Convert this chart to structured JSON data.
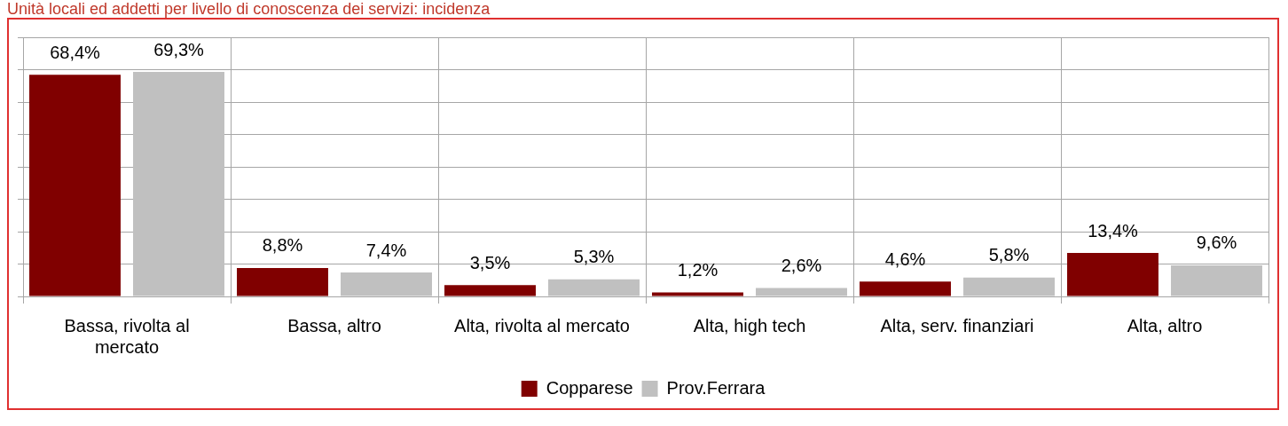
{
  "chart_data": {
    "type": "bar",
    "title": "Unità locali ed addetti per livello di conoscenza dei servizi: incidenza",
    "categories": [
      "Bassa, rivolta al mercato",
      "Bassa, altro",
      "Alta, rivolta al mercato",
      "Alta, high tech",
      "Alta, serv. finanziari",
      "Alta, altro"
    ],
    "series": [
      {
        "name": "Copparese",
        "color": "#800000",
        "values": [
          68.4,
          8.8,
          3.5,
          1.2,
          4.6,
          13.4
        ],
        "value_labels": [
          "68,4%",
          "8,8%",
          "3,5%",
          "1,2%",
          "4,6%",
          "13,4%"
        ]
      },
      {
        "name": "Prov.Ferrara",
        "color": "#c0c0c0",
        "values": [
          69.3,
          7.4,
          5.3,
          2.6,
          5.8,
          9.6
        ],
        "value_labels": [
          "69,3%",
          "7,4%",
          "5,3%",
          "2,6%",
          "5,8%",
          "9,6%"
        ]
      }
    ],
    "ylim": [
      0,
      80
    ],
    "yticks": [
      {
        "value": 0,
        "label": null
      },
      {
        "value": 10,
        "label": null
      },
      {
        "value": 20,
        "label": null
      },
      {
        "value": 30,
        "label": null
      },
      {
        "value": 40,
        "label": null
      },
      {
        "value": 50,
        "label": null
      },
      {
        "value": 60,
        "label": null
      },
      {
        "value": 70,
        "label": null
      },
      {
        "value": 80,
        "label": null
      }
    ],
    "tick_labels": "x",
    "grid": true,
    "legend": "bottom"
  }
}
